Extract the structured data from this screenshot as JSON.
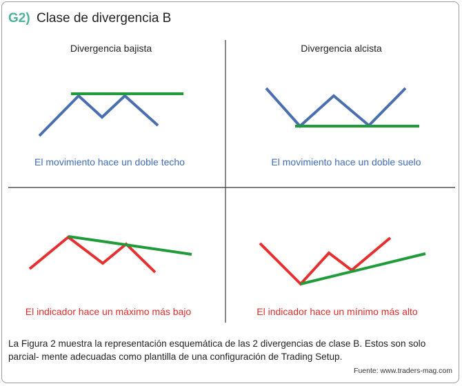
{
  "figure": {
    "tag": "G2)",
    "title": "Clase de divergencia B"
  },
  "panels": {
    "top_left": {
      "heading": "Divergencia bajista",
      "caption": "El movimiento hace un doble techo"
    },
    "top_right": {
      "heading": "Divergencia alcista",
      "caption": "El movimiento hace un doble suelo"
    },
    "bottom_left": {
      "caption": "El indicador hace un máximo más bajo"
    },
    "bottom_right": {
      "caption": "El indicador hace un mínimo más alto"
    }
  },
  "footer": {
    "text": "La Figura 2 muestra la representación esquemática de las 2 divergencias de clase B. Estos son solo parcial- mente adecuadas como plantilla de una configuración de Trading Setup.",
    "source": "Fuente: www.traders-mag.com"
  },
  "colors": {
    "price_line": "#4a6fb0",
    "indicator_line": "#e63030",
    "trend_line": "#1f9b3a",
    "divider": "#555555",
    "tag": "#4fb29a"
  }
}
